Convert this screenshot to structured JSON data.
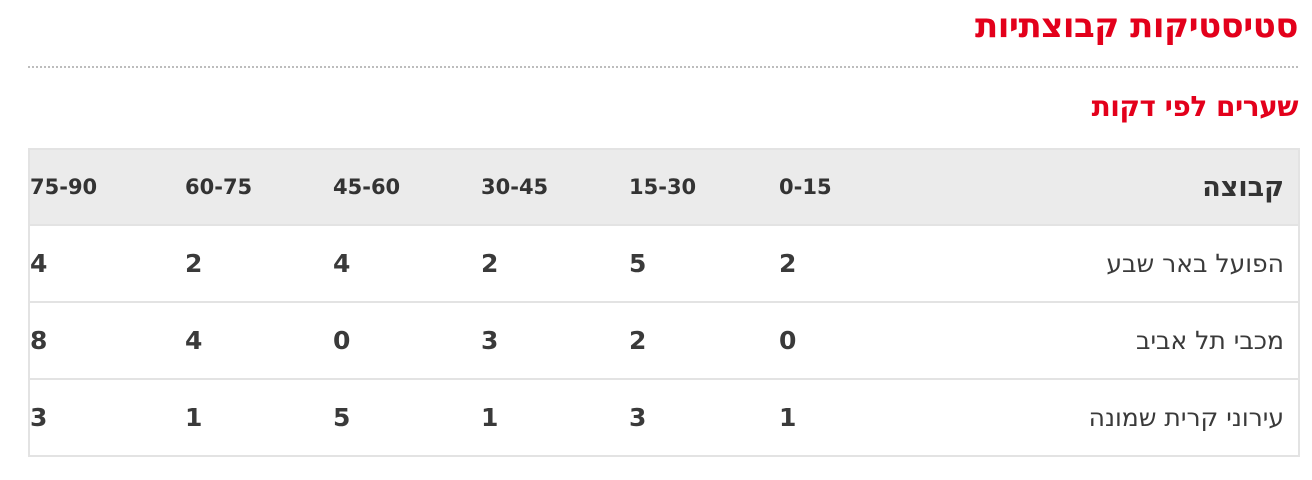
{
  "page": {
    "title": "סטיסטיקות קבוצתיות",
    "subtitle": "שערים לפי דקות"
  },
  "table": {
    "headers": [
      "קבוצה",
      "0-15",
      "15-30",
      "30-45",
      "45-60",
      "60-75",
      "75-90"
    ],
    "rows": [
      {
        "team": "הפועל באר שבע",
        "values": [
          "2",
          "5",
          "2",
          "4",
          "2",
          "4"
        ]
      },
      {
        "team": "מכבי תל אביב",
        "values": [
          "0",
          "2",
          "3",
          "0",
          "4",
          "8"
        ]
      },
      {
        "team": "עירוני קרית שמונה",
        "values": [
          "1",
          "3",
          "1",
          "5",
          "1",
          "3"
        ]
      }
    ]
  },
  "colors": {
    "accent": "#e3001b",
    "header_bg": "#ebebeb",
    "border": "#e3e3e3",
    "divider": "#bdbdbd"
  }
}
